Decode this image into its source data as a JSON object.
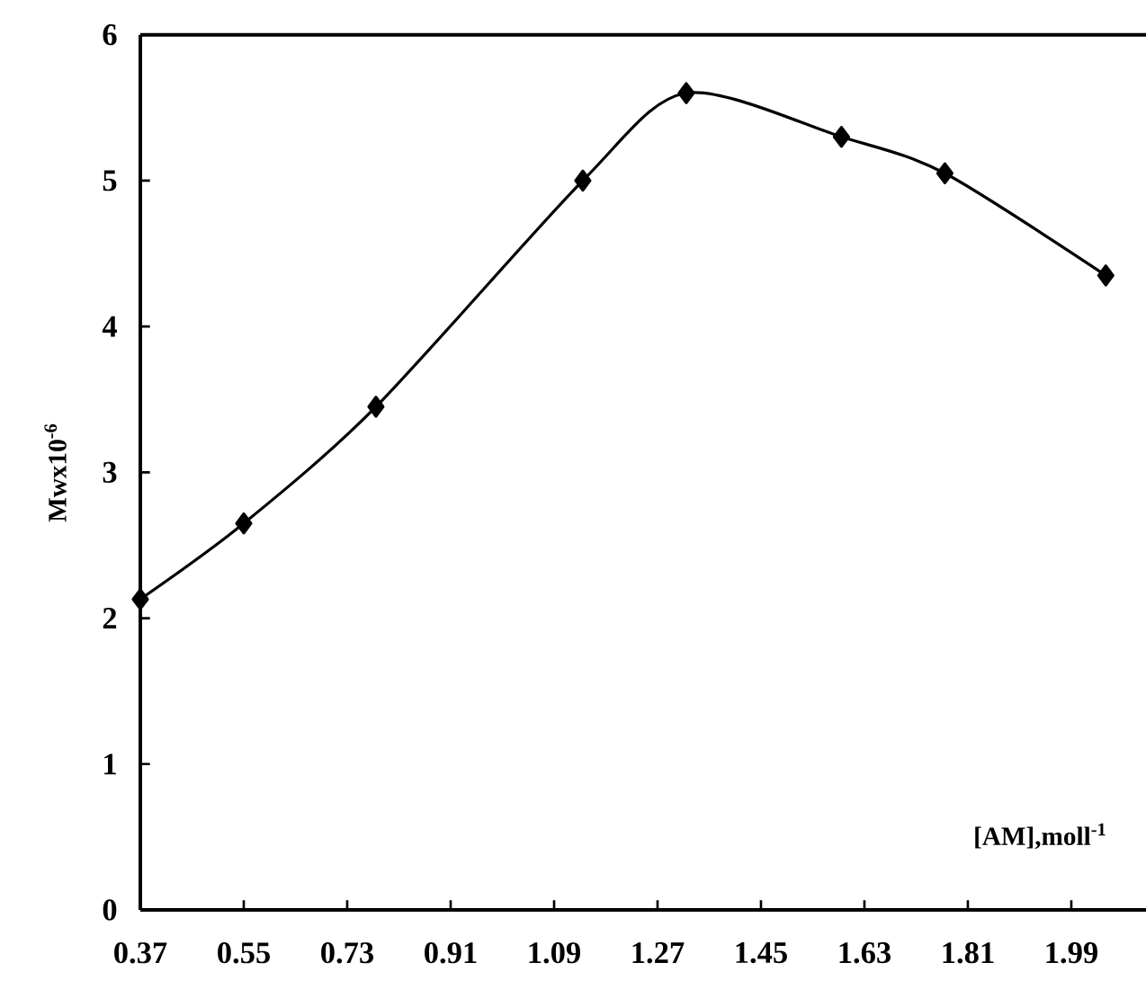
{
  "chart_data": {
    "type": "line",
    "xlabel": "[AM],moll$^{-1}$",
    "ylabel": "Mwx10$^{-6}$",
    "x": [
      0.37,
      0.55,
      0.78,
      1.14,
      1.32,
      1.59,
      1.77,
      2.05
    ],
    "series": [
      {
        "color": "#000000",
        "values": [
          2.13,
          2.65,
          3.45,
          5.0,
          5.6,
          5.3,
          5.05,
          4.35
        ]
      }
    ],
    "xlim": [
      0.37,
      2.12
    ],
    "xticks": [
      0.37,
      0.55,
      0.73,
      0.91,
      1.09,
      1.27,
      1.45,
      1.63,
      1.81,
      1.99
    ],
    "ylim": [
      0,
      6
    ],
    "yticks": [
      0,
      1,
      2,
      3,
      4,
      5,
      6
    ],
    "marker": "diamond",
    "line_style": "solid"
  }
}
